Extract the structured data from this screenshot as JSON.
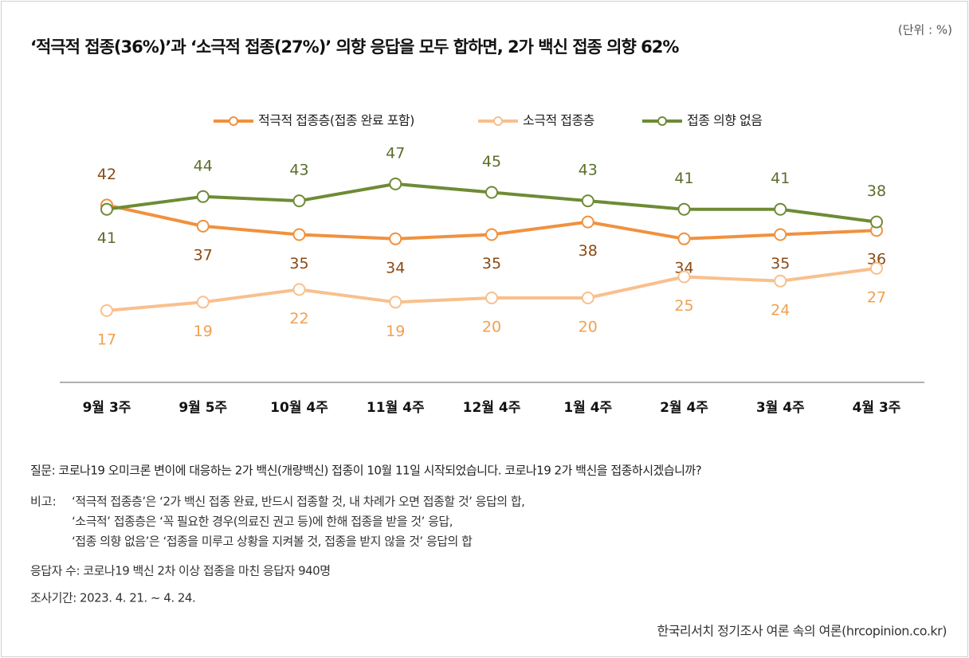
{
  "chart_data": {
    "type": "line",
    "title": "‘적극적 접종(36%)’과 ‘소극적 접종(27%)’ 의향 응답을 모두 합하면, 2가 백신 접종 의향 62%",
    "unit_label": "(단위 : %)",
    "categories": [
      "9월 3주",
      "9월 5주",
      "10월 4주",
      "11월 4주",
      "12월 4주",
      "1월 4주",
      "2월 4주",
      "3월 4주",
      "4월 3주"
    ],
    "series": [
      {
        "name": "적극적 접종층(접종 완료 포함)",
        "color": "#f0913f",
        "label_color": "#8b4a12",
        "values": [
          42,
          37,
          35,
          34,
          35,
          38,
          34,
          35,
          36
        ]
      },
      {
        "name": "소극적 접종층",
        "color": "#f8c08d",
        "label_color": "#f0a050",
        "values": [
          17,
          19,
          22,
          19,
          20,
          20,
          25,
          24,
          27
        ]
      },
      {
        "name": "접종 의향 없음",
        "color": "#6e8b35",
        "label_color": "#5a6e2a",
        "values": [
          41,
          44,
          43,
          47,
          45,
          43,
          41,
          41,
          38
        ]
      }
    ],
    "ylim": [
      0,
      60
    ],
    "legend": "top",
    "question": "질문: 코로나19 오미크론 변이에 대응하는 2가 백신(개량백신) 접종이 10월 11일 시작되었습니다. 코로나19 2가 백신을 접종하시겠습니까?",
    "remarks_label": "비고:",
    "remarks": [
      "‘적극적 접종층’은 ‘2가 백신 접종 완료, 반드시 접종할 것, 내 차례가 오면 접종할 것’ 응답의 합,",
      "‘소극적’ 접종층은 ‘꼭 필요한 경우(의료진 권고 등)에 한해 접종을 받을 것’ 응답,",
      "‘접종 의향 없음’은 ‘접종을 미루고 상황을 지켜볼 것, 접종을 받지 않을 것’ 응답의 합"
    ],
    "respondents": "응답자 수: 코로나19 백신 2차 이상 접종을 마친 응답자 940명",
    "period": "조사기간: 2023. 4. 21. ~ 4. 24.",
    "source": "한국리서치 정기조사 여론 속의 여론(hrcopinion.co.kr)"
  }
}
